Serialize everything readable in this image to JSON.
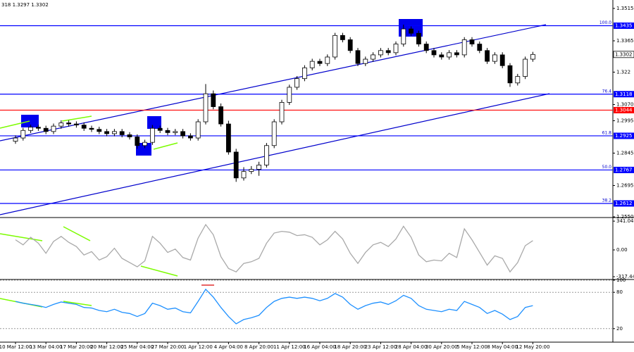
{
  "chart_data": [
    {
      "type": "candlestick",
      "header": "318 1.3297 1.3302",
      "categories": [
        "10 Mar 12:00",
        null,
        null,
        null,
        "13 Mar 04:00",
        null,
        null,
        null,
        "17 Mar 20:00",
        null,
        null,
        null,
        "20 Mar 12:00",
        null,
        null,
        null,
        "25 Mar 04:00",
        null,
        null,
        null,
        "27 Mar 20:00",
        null,
        null,
        null,
        "1 Apr 12:00",
        null,
        null,
        null,
        "4 Apr 04:00",
        null,
        null,
        null,
        "8 Apr 20:00",
        null,
        null,
        null,
        "11 Apr 12:00",
        null,
        null,
        null,
        "16 Apr 04:00",
        null,
        null,
        null,
        "18 Apr 20:00",
        null,
        null,
        null,
        "23 Apr 12:00",
        null,
        null,
        null,
        "28 Apr 04:00",
        null,
        null,
        null,
        "30 Apr 20:00",
        null,
        null,
        null,
        "5 May 12:00",
        null,
        null,
        null,
        "8 May 04:00",
        null,
        null,
        null,
        "12 May 20:00"
      ],
      "open": [
        1.29,
        1.2915,
        1.295,
        1.2965,
        1.296,
        1.2945,
        1.297,
        1.2985,
        1.298,
        1.2975,
        1.296,
        1.2955,
        1.2945,
        1.2935,
        1.2945,
        1.293,
        1.292,
        1.288,
        1.2895,
        1.296,
        1.295,
        1.294,
        1.2945,
        1.2925,
        1.2915,
        1.299,
        1.312,
        1.306,
        1.298,
        1.285,
        1.273,
        1.276,
        1.277,
        1.279,
        1.288,
        1.299,
        1.308,
        1.315,
        1.319,
        1.324,
        1.327,
        1.326,
        1.329,
        1.339,
        1.337,
        1.332,
        1.326,
        1.328,
        1.33,
        1.332,
        1.331,
        1.335,
        1.342,
        1.34,
        1.335,
        1.332,
        1.33,
        1.329,
        1.331,
        1.33,
        1.337,
        1.335,
        1.332,
        1.327,
        1.33,
        1.325,
        1.317,
        1.32,
        1.328
      ],
      "high": [
        1.2927,
        1.2962,
        1.2977,
        1.2977,
        1.2972,
        1.2982,
        1.2997,
        1.2997,
        1.2992,
        1.2987,
        1.2972,
        1.2967,
        1.2957,
        1.2957,
        1.2957,
        1.2942,
        1.2932,
        1.2907,
        1.2975,
        1.2972,
        1.2962,
        1.2957,
        1.2957,
        1.2937,
        1.3002,
        1.3165,
        1.3135,
        1.3075,
        1.2995,
        1.2865,
        1.278,
        1.2785,
        1.2805,
        1.2892,
        1.3002,
        1.3092,
        1.3162,
        1.3202,
        1.3252,
        1.3282,
        1.3282,
        1.3302,
        1.3402,
        1.3402,
        1.3382,
        1.3332,
        1.3292,
        1.3312,
        1.3332,
        1.3332,
        1.3362,
        1.344,
        1.3432,
        1.3412,
        1.3362,
        1.3332,
        1.3312,
        1.3322,
        1.3322,
        1.3382,
        1.3382,
        1.3362,
        1.3332,
        1.3312,
        1.3312,
        1.3262,
        1.3212,
        1.3292,
        1.3314
      ],
      "low": [
        1.2888,
        1.2903,
        1.2938,
        1.2948,
        1.2933,
        1.2933,
        1.2958,
        1.2968,
        1.2963,
        1.2948,
        1.2943,
        1.2933,
        1.2923,
        1.2923,
        1.2918,
        1.2908,
        1.2865,
        1.2868,
        1.2883,
        1.2938,
        1.2928,
        1.2928,
        1.2913,
        1.2903,
        1.2903,
        1.2978,
        1.3048,
        1.2968,
        1.2838,
        1.2712,
        1.2718,
        1.2748,
        1.274,
        1.2778,
        1.2868,
        1.2978,
        1.3068,
        1.3138,
        1.3178,
        1.3228,
        1.3248,
        1.3248,
        1.3278,
        1.3358,
        1.3308,
        1.3248,
        1.3248,
        1.3268,
        1.3288,
        1.3298,
        1.3298,
        1.3338,
        1.3388,
        1.3338,
        1.3308,
        1.3288,
        1.3278,
        1.3278,
        1.3288,
        1.3288,
        1.3338,
        1.3308,
        1.3258,
        1.3258,
        1.3238,
        1.3152,
        1.3158,
        1.3188,
        1.3268
      ],
      "close": [
        1.2915,
        1.295,
        1.2965,
        1.296,
        1.2945,
        1.297,
        1.2985,
        1.298,
        1.2975,
        1.296,
        1.2955,
        1.2945,
        1.2935,
        1.2945,
        1.293,
        1.292,
        1.288,
        1.2895,
        1.296,
        1.295,
        1.294,
        1.2945,
        1.2925,
        1.2915,
        1.299,
        1.312,
        1.306,
        1.298,
        1.285,
        1.273,
        1.276,
        1.277,
        1.279,
        1.288,
        1.299,
        1.308,
        1.315,
        1.319,
        1.324,
        1.327,
        1.326,
        1.329,
        1.339,
        1.337,
        1.332,
        1.326,
        1.328,
        1.33,
        1.332,
        1.331,
        1.335,
        1.342,
        1.34,
        1.335,
        1.332,
        1.33,
        1.329,
        1.331,
        1.33,
        1.337,
        1.335,
        1.332,
        1.327,
        1.33,
        1.325,
        1.317,
        1.32,
        1.328,
        1.3302
      ],
      "color": "#000000",
      "ylim": [
        1.255,
        1.3554
      ],
      "yticks": [
        1.3515,
        1.3365,
        1.322,
        {
          "value": 1.307,
          "label": "1.3070"
        },
        1.2995,
        1.2845,
        1.2695,
        {
          "value": 1.255,
          "label": "1.2550"
        }
      ],
      "levels": [
        {
          "value": 1.3435,
          "fib": "100.0",
          "color": "#0000ff"
        },
        {
          "value": 1.3118,
          "fib": "76.4",
          "color": "#0000ff"
        },
        {
          "value": 1.3044,
          "color": "#ff0000"
        },
        {
          "value": 1.2925,
          "fib": "61.8",
          "color": "#0000ff"
        },
        {
          "value": 1.2767,
          "fib": "50.0",
          "color": "#0000ff"
        },
        {
          "value": 1.2612,
          "fib": "38.2",
          "color": "#0000ff"
        }
      ],
      "last_price": 1.3302
    },
    {
      "type": "line",
      "values": [
        120,
        60,
        150,
        80,
        -40,
        100,
        160,
        90,
        40,
        -60,
        -20,
        -120,
        -80,
        20,
        -100,
        -150,
        -200,
        -130,
        160,
        80,
        -30,
        10,
        -90,
        -120,
        140,
        300,
        180,
        -80,
        -220,
        -260,
        -160,
        -140,
        -100,
        80,
        200,
        220,
        210,
        170,
        180,
        150,
        60,
        120,
        220,
        130,
        -40,
        -160,
        -30,
        60,
        90,
        40,
        130,
        280,
        150,
        -60,
        -140,
        -120,
        -130,
        -40,
        -90,
        250,
        120,
        -30,
        -180,
        -70,
        -100,
        -260,
        -150,
        50,
        110
      ],
      "color": "#a9a9a9",
      "ylim": [
        -342,
        367
      ],
      "yticks": [
        341.0423,
        {
          "value": 0,
          "label": "0.00"
        },
        -317.444
      ],
      "grid": false
    },
    {
      "type": "line",
      "values": [
        65,
        62,
        60,
        58,
        55,
        60,
        64,
        62,
        60,
        55,
        54,
        50,
        48,
        52,
        47,
        45,
        40,
        45,
        62,
        58,
        52,
        54,
        48,
        46,
        65,
        85,
        72,
        55,
        40,
        28,
        35,
        38,
        42,
        55,
        65,
        70,
        72,
        70,
        72,
        70,
        66,
        70,
        78,
        72,
        60,
        52,
        58,
        62,
        64,
        60,
        66,
        75,
        70,
        58,
        52,
        50,
        48,
        52,
        50,
        65,
        60,
        55,
        45,
        50,
        44,
        35,
        40,
        55,
        58
      ],
      "color": "#1e90ff",
      "ylim": [
        0,
        100
      ],
      "yticks": [
        100,
        80,
        20
      ],
      "grid": true
    }
  ]
}
